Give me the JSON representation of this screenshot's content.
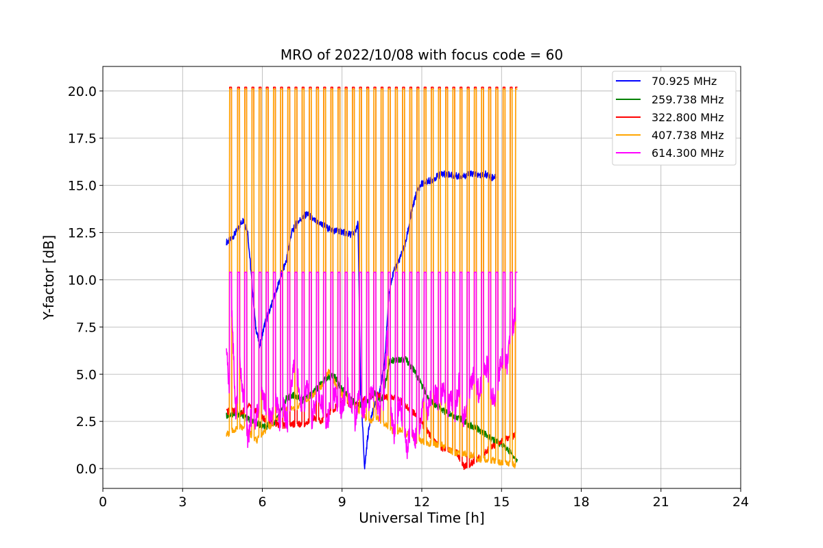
{
  "chart_data": {
    "type": "line",
    "title": "MRO of 2022/10/08 with focus code = 60",
    "xlabel": "Universal Time [h]",
    "ylabel": "Y-factor [dB]",
    "xlim": [
      0,
      24
    ],
    "ylim": [
      -1.05,
      21.3
    ],
    "xticks": [
      0,
      3,
      6,
      9,
      12,
      15,
      18,
      21,
      24
    ],
    "xtick_labels": [
      "0",
      "3",
      "6",
      "9",
      "12",
      "15",
      "18",
      "21",
      "24"
    ],
    "yticks": [
      0.0,
      2.5,
      5.0,
      7.5,
      10.0,
      12.5,
      15.0,
      17.5,
      20.0
    ],
    "ytick_labels": [
      "0.0",
      "2.5",
      "5.0",
      "7.5",
      "10.0",
      "12.5",
      "15.0",
      "17.5",
      "20.0"
    ],
    "grid": true,
    "legend_position": "top-right",
    "calibration_spikes": {
      "x": [
        4.8,
        5.1,
        5.37,
        5.64,
        5.91,
        6.18,
        6.45,
        6.72,
        6.99,
        7.26,
        7.53,
        7.8,
        8.07,
        8.34,
        8.61,
        8.88,
        9.15,
        9.42,
        9.69,
        9.96,
        10.23,
        10.5,
        10.77,
        11.04,
        11.31,
        11.58,
        11.85,
        12.12,
        12.39,
        12.66,
        12.93,
        13.2,
        13.47,
        13.74,
        14.01,
        14.28,
        14.55,
        14.82,
        15.09,
        15.36,
        15.56
      ],
      "orange_peak": 20.1,
      "red_peak": 20.2,
      "magenta_peak": 10.4
    },
    "series": [
      {
        "name": "70.925 MHz",
        "color": "#0000ff",
        "x": [
          4.65,
          4.8,
          5.0,
          5.2,
          5.3,
          5.45,
          5.6,
          5.75,
          5.9,
          6.1,
          6.3,
          6.5,
          6.7,
          6.9,
          7.1,
          7.3,
          7.5,
          7.7,
          7.9,
          8.1,
          8.3,
          8.5,
          8.7,
          8.9,
          9.1,
          9.3,
          9.5,
          9.6,
          9.7,
          9.8,
          9.85,
          9.95,
          10.05,
          10.2,
          10.4,
          10.6,
          10.75,
          10.85,
          11.0,
          11.2,
          11.4,
          11.6,
          11.8,
          12.0,
          12.2,
          12.4,
          12.6,
          12.8,
          13.0,
          13.2,
          13.4,
          13.6,
          13.8,
          14.0,
          14.2,
          14.4,
          14.6,
          14.8
        ],
        "y": [
          12.0,
          12.1,
          12.5,
          13.0,
          13.2,
          12.5,
          10.0,
          7.5,
          6.5,
          7.7,
          8.5,
          9.3,
          10.2,
          11.0,
          12.5,
          13.0,
          13.3,
          13.5,
          13.2,
          13.0,
          12.9,
          12.7,
          12.6,
          12.6,
          12.5,
          12.4,
          12.5,
          13.0,
          4.0,
          1.5,
          0.0,
          1.5,
          2.5,
          3.2,
          4.0,
          5.5,
          9.0,
          10.0,
          10.6,
          11.2,
          12.0,
          13.5,
          14.6,
          15.1,
          15.2,
          15.3,
          15.5,
          15.6,
          15.6,
          15.5,
          15.5,
          15.5,
          15.6,
          15.6,
          15.5,
          15.6,
          15.4,
          15.5
        ]
      },
      {
        "name": "259.738 MHz",
        "color": "#008000",
        "x": [
          4.65,
          4.9,
          5.2,
          5.5,
          5.8,
          6.1,
          6.5,
          6.9,
          7.2,
          7.5,
          7.8,
          8.1,
          8.4,
          8.7,
          9.0,
          9.3,
          9.6,
          9.9,
          10.2,
          10.5,
          10.8,
          11.1,
          11.4,
          11.7,
          12.0,
          12.3,
          12.6,
          12.9,
          13.2,
          13.5,
          13.8,
          14.1,
          14.4,
          14.7,
          15.0,
          15.3,
          15.6
        ],
        "y": [
          2.8,
          2.9,
          2.9,
          2.6,
          2.4,
          2.2,
          2.5,
          3.7,
          3.9,
          3.6,
          3.9,
          4.3,
          4.8,
          4.9,
          4.2,
          3.7,
          3.3,
          3.5,
          4.0,
          3.6,
          5.7,
          5.8,
          5.8,
          5.2,
          4.4,
          3.6,
          3.3,
          3.0,
          2.8,
          2.6,
          2.3,
          2.1,
          1.8,
          1.5,
          1.3,
          0.9,
          0.4
        ]
      },
      {
        "name": "322.800 MHz",
        "color": "#ff0000",
        "x": [
          4.65,
          4.9,
          5.2,
          5.5,
          5.8,
          6.1,
          6.4,
          6.7,
          7.0,
          7.3,
          7.6,
          7.9,
          8.2,
          8.5,
          8.8,
          9.1,
          9.4,
          9.7,
          10.0,
          10.3,
          10.6,
          10.9,
          11.2,
          11.5,
          11.8,
          12.1,
          12.4,
          12.7,
          13.0,
          13.3,
          13.6,
          13.9,
          14.2,
          14.5,
          14.8,
          15.1,
          15.4,
          15.6
        ],
        "y": [
          3.0,
          3.1,
          2.9,
          3.4,
          3.0,
          2.6,
          2.4,
          2.3,
          2.3,
          2.4,
          2.3,
          2.7,
          2.5,
          2.9,
          3.3,
          3.5,
          3.3,
          3.5,
          3.8,
          3.9,
          3.8,
          3.8,
          3.6,
          3.2,
          2.8,
          2.2,
          1.6,
          1.1,
          1.0,
          0.9,
          0.1,
          0.3,
          0.6,
          1.0,
          1.3,
          1.5,
          1.7,
          1.8
        ]
      },
      {
        "name": "407.738 MHz",
        "color": "#ffa500",
        "x": [
          4.65,
          4.9,
          5.2,
          5.5,
          5.8,
          6.1,
          6.4,
          6.7,
          7.0,
          7.3,
          7.6,
          7.9,
          8.2,
          8.5,
          8.8,
          9.1,
          9.4,
          9.7,
          10.0,
          10.3,
          10.6,
          10.9,
          11.2,
          11.5,
          11.8,
          12.1,
          12.4,
          12.7,
          13.0,
          13.3,
          13.6,
          13.9,
          14.2,
          14.5,
          14.8,
          15.1,
          15.4,
          15.6
        ],
        "y": [
          1.8,
          2.0,
          2.2,
          1.9,
          1.5,
          2.0,
          2.4,
          2.7,
          3.3,
          3.2,
          3.6,
          3.9,
          4.3,
          5.2,
          4.4,
          3.7,
          3.4,
          3.0,
          2.5,
          2.7,
          2.4,
          2.0,
          2.0,
          1.8,
          1.5,
          1.4,
          1.3,
          1.3,
          1.0,
          0.8,
          0.8,
          0.7,
          0.5,
          0.5,
          0.4,
          0.3,
          0.2,
          0.2
        ]
      },
      {
        "name": "614.300 MHz",
        "color": "#ff00ff",
        "x": [
          4.65,
          4.75,
          4.85,
          5.0,
          5.15,
          5.3,
          5.45,
          5.6,
          5.75,
          5.9,
          6.05,
          6.2,
          6.35,
          6.5,
          6.65,
          6.8,
          6.95,
          7.1,
          7.25,
          7.4,
          7.55,
          7.7,
          7.85,
          8.0,
          8.15,
          8.3,
          8.45,
          8.6,
          8.75,
          8.9,
          9.05,
          9.2,
          9.35,
          9.5,
          9.65,
          9.8,
          9.95,
          10.1,
          10.25,
          10.4,
          10.55,
          10.7,
          10.85,
          11.0,
          11.15,
          11.3,
          11.45,
          11.6,
          11.75,
          11.9,
          12.05,
          12.2,
          12.35,
          12.5,
          12.65,
          12.8,
          12.95,
          13.1,
          13.25,
          13.4,
          13.55,
          13.7,
          13.85,
          14.0,
          14.15,
          14.3,
          14.45,
          14.6,
          14.75,
          14.9,
          15.05,
          15.2,
          15.35,
          15.5,
          15.6
        ],
        "y": [
          6.0,
          4.5,
          8.5,
          3.0,
          5.5,
          3.5,
          1.5,
          3.0,
          2.5,
          4.0,
          3.5,
          3.0,
          2.5,
          3.8,
          2.5,
          3.5,
          2.0,
          4.5,
          5.8,
          4.0,
          3.0,
          4.5,
          2.5,
          3.5,
          4.0,
          3.0,
          2.5,
          3.5,
          4.0,
          2.8,
          3.5,
          4.5,
          3.0,
          2.5,
          4.0,
          3.0,
          3.5,
          3.8,
          4.0,
          3.0,
          3.5,
          7.0,
          3.0,
          1.5,
          3.5,
          2.5,
          1.0,
          2.5,
          1.5,
          2.0,
          3.5,
          3.0,
          3.8,
          4.0,
          3.5,
          4.2,
          3.0,
          3.8,
          3.0,
          4.5,
          2.5,
          3.5,
          4.5,
          5.0,
          4.0,
          4.8,
          5.5,
          4.0,
          3.5,
          5.0,
          6.0,
          5.5,
          7.0,
          8.0,
          6.5
        ]
      }
    ]
  }
}
